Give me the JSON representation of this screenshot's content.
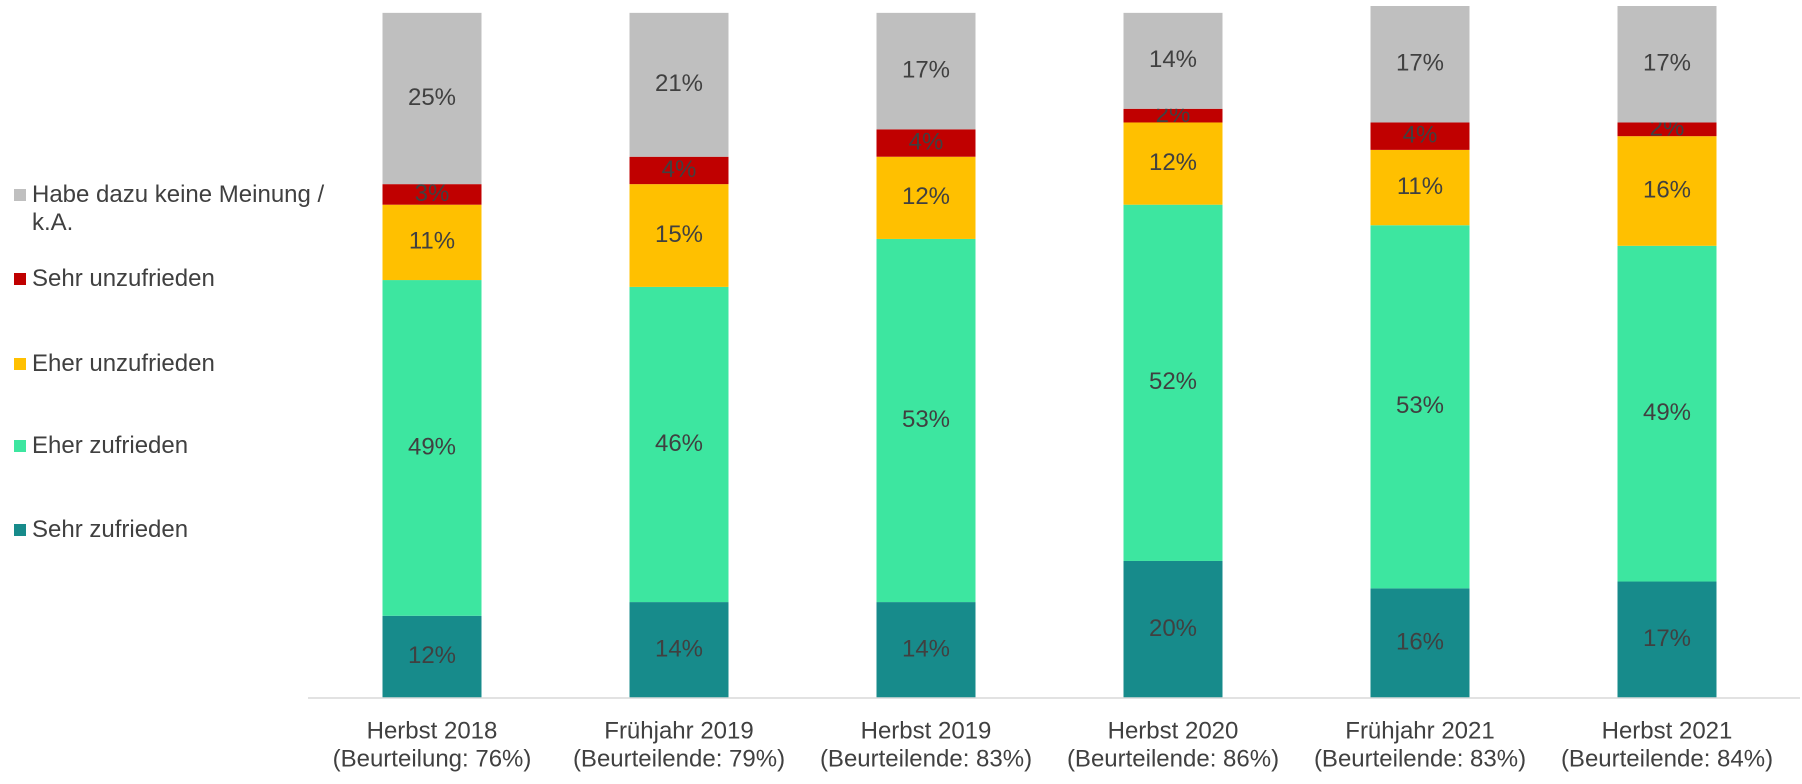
{
  "chart_data": {
    "type": "stacked_bar",
    "categories": [
      [
        "Herbst 2018",
        "(Beurteilung: 76%)"
      ],
      [
        "Frühjahr 2019",
        "(Beurteilende: 79%)"
      ],
      [
        "Herbst 2019",
        "(Beurteilende: 83%)"
      ],
      [
        "Herbst 2020",
        "(Beurteilende: 86%)"
      ],
      [
        "Frühjahr 2021",
        "(Beurteilende: 83%)"
      ],
      [
        "Herbst 2021",
        "(Beurteilende: 84%)"
      ]
    ],
    "series": [
      {
        "name": "Sehr zufrieden",
        "color": "#178b8b",
        "label_color": "#ffffff",
        "values": [
          12,
          14,
          14,
          20,
          16,
          17
        ],
        "value_labels": [
          "12%",
          "14%",
          "14%",
          "20%",
          "16%",
          "17%"
        ]
      },
      {
        "name": "Eher zufrieden",
        "color": "#3de6a0",
        "label_color": "#404040",
        "values": [
          49,
          46,
          53,
          52,
          53,
          49
        ],
        "value_labels": [
          "49%",
          "46%",
          "53%",
          "52%",
          "53%",
          "49%"
        ]
      },
      {
        "name": "Eher unzufrieden",
        "color": "#ffc000",
        "label_color": "#404040",
        "values": [
          11,
          15,
          12,
          12,
          11,
          16
        ],
        "value_labels": [
          "11%",
          "15%",
          "12%",
          "12%",
          "11%",
          "16%"
        ]
      },
      {
        "name": "Sehr unzufrieden",
        "color": "#c00000",
        "label_color": "#ffffff",
        "values": [
          3,
          4,
          4,
          2,
          4,
          2
        ],
        "value_labels": [
          "3%",
          "4%",
          "4%",
          "2%",
          "4%",
          "2%"
        ]
      },
      {
        "name": "Habe dazu keine Meinung / k.A.",
        "color": "#bfbfbf",
        "label_color": "#404040",
        "values": [
          25,
          21,
          17,
          14,
          17,
          17
        ],
        "value_labels": [
          "25%",
          "21%",
          "17%",
          "14%",
          "17%",
          "17%"
        ]
      }
    ],
    "ylim": [
      0,
      101
    ],
    "legend": "left"
  }
}
